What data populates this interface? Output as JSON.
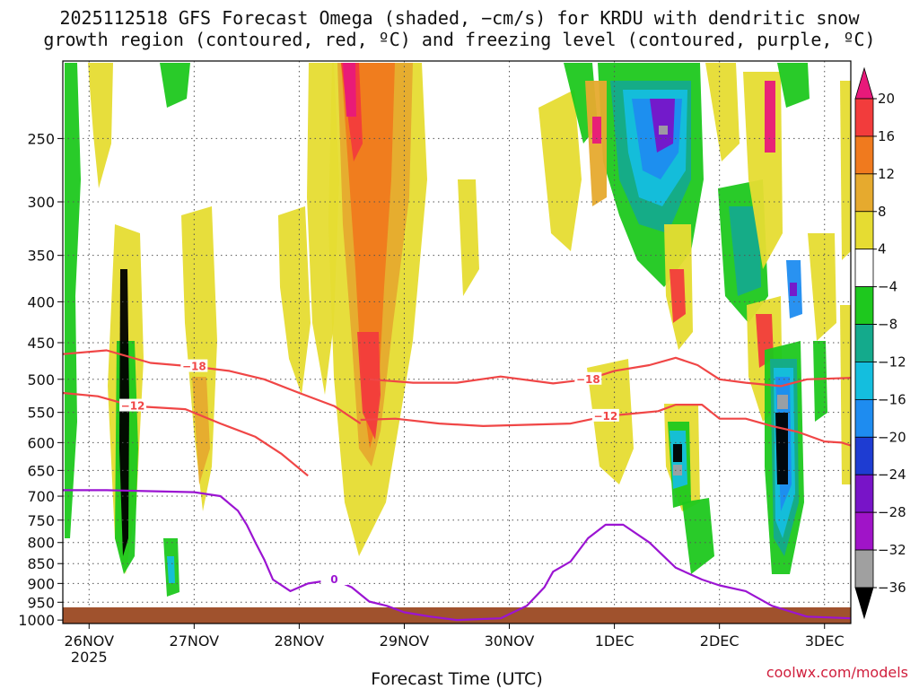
{
  "chart_data": {
    "type": "heatmap",
    "title_line1": "2025112518 GFS Forecast Omega (shaded, −cm/s) for KRDU with dendritic snow",
    "title_line2": "growth region (contoured, red, ºC) and freezing level (contoured, purple, ºC)",
    "xlabel": "Forecast Time (UTC)",
    "credit": "coolwx.com/models",
    "x_ticks": [
      {
        "hour": 6,
        "label": "26NOV",
        "sublabel": "2025"
      },
      {
        "hour": 30,
        "label": "27NOV"
      },
      {
        "hour": 54,
        "label": "28NOV"
      },
      {
        "hour": 78,
        "label": "29NOV"
      },
      {
        "hour": 102,
        "label": "30NOV"
      },
      {
        "hour": 126,
        "label": "1DEC"
      },
      {
        "hour": 150,
        "label": "2DEC"
      },
      {
        "hour": 174,
        "label": "3DEC"
      }
    ],
    "xlim_hours": [
      0,
      180
    ],
    "y_levels_hpa": [
      250,
      300,
      350,
      400,
      450,
      500,
      550,
      600,
      650,
      700,
      750,
      800,
      850,
      900,
      950,
      1000
    ],
    "ylim_hpa": [
      200,
      1010
    ],
    "colorbar": {
      "ticks": [
        "20",
        "16",
        "12",
        "8",
        "4",
        "−4",
        "−8",
        "−12",
        "−16",
        "−20",
        "−24",
        "−28",
        "−32",
        "−36"
      ],
      "colors": [
        "#e8197a",
        "#f23c3c",
        "#f07a1e",
        "#e6aa2e",
        "#e6dc32",
        "#ffffff",
        "#1ec81e",
        "#14aa8c",
        "#14bede",
        "#1e8cf0",
        "#1e3cd2",
        "#7814c8",
        "#a014c8",
        "#a0a0a0",
        "#000000"
      ]
    },
    "contours": [
      {
        "label": "−18",
        "color": "#f04646",
        "points": [
          [
            0,
            465
          ],
          [
            10,
            460
          ],
          [
            20,
            477
          ],
          [
            30,
            482
          ],
          [
            38,
            488
          ],
          [
            46,
            500
          ],
          [
            54,
            520
          ],
          [
            62,
            540
          ],
          [
            68,
            568
          ]
        ]
      },
      {
        "label": "−12",
        "color": "#f04646",
        "points": [
          [
            0,
            520
          ],
          [
            8,
            525
          ],
          [
            16,
            540
          ],
          [
            28,
            545
          ],
          [
            36,
            568
          ],
          [
            44,
            590
          ],
          [
            50,
            620
          ],
          [
            56,
            660
          ]
        ]
      },
      {
        "label": "−18",
        "color": "#f04646",
        "points": [
          [
            70,
            500
          ],
          [
            80,
            505
          ],
          [
            90,
            505
          ],
          [
            100,
            496
          ],
          [
            112,
            506
          ],
          [
            120,
            500
          ],
          [
            126,
            488
          ],
          [
            134,
            480
          ],
          [
            140,
            470
          ],
          [
            145,
            480
          ],
          [
            150,
            500
          ],
          [
            156,
            505
          ],
          [
            164,
            510
          ],
          [
            170,
            500
          ],
          [
            180,
            498
          ]
        ]
      },
      {
        "label": "−12",
        "color": "#f04646",
        "points": [
          [
            68,
            562
          ],
          [
            76,
            560
          ],
          [
            86,
            568
          ],
          [
            96,
            572
          ],
          [
            106,
            570
          ],
          [
            116,
            568
          ],
          [
            124,
            556
          ],
          [
            130,
            552
          ],
          [
            136,
            548
          ],
          [
            140,
            538
          ],
          [
            146,
            538
          ],
          [
            150,
            560
          ],
          [
            156,
            560
          ],
          [
            162,
            572
          ],
          [
            168,
            582
          ],
          [
            174,
            598
          ],
          [
            178,
            600
          ],
          [
            180,
            605
          ]
        ]
      },
      {
        "label": "0",
        "color": "#9b14d2",
        "points": [
          [
            0,
            688
          ],
          [
            10,
            688
          ],
          [
            20,
            690
          ],
          [
            30,
            692
          ],
          [
            36,
            700
          ],
          [
            40,
            730
          ],
          [
            42,
            760
          ],
          [
            44,
            800
          ],
          [
            46,
            840
          ],
          [
            48,
            890
          ],
          [
            52,
            920
          ],
          [
            56,
            900
          ],
          [
            62,
            890
          ],
          [
            66,
            910
          ],
          [
            70,
            948
          ],
          [
            74,
            960
          ],
          [
            78,
            978
          ],
          [
            84,
            990
          ],
          [
            90,
            1000
          ],
          [
            100,
            995
          ],
          [
            106,
            960
          ],
          [
            110,
            910
          ],
          [
            112,
            870
          ],
          [
            116,
            845
          ],
          [
            120,
            790
          ],
          [
            124,
            760
          ],
          [
            128,
            760
          ],
          [
            134,
            800
          ],
          [
            140,
            860
          ],
          [
            146,
            890
          ],
          [
            150,
            905
          ],
          [
            156,
            920
          ],
          [
            162,
            960
          ],
          [
            170,
            990
          ],
          [
            180,
            995
          ]
        ]
      }
    ]
  }
}
